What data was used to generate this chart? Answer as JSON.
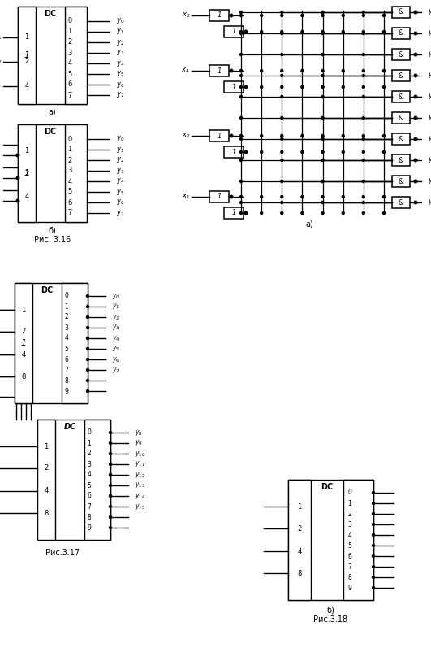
{
  "bg_color": "#ffffff",
  "lc": "#000000",
  "fig316_a_label": "а)",
  "fig316_b_label": "б)",
  "fig316_caption": "Рис. 3.16",
  "fig317_caption": "Рис.3.17",
  "fig318_a_label": "а)",
  "fig318_b_label": "б)",
  "fig318_caption": "Рис.3.18"
}
